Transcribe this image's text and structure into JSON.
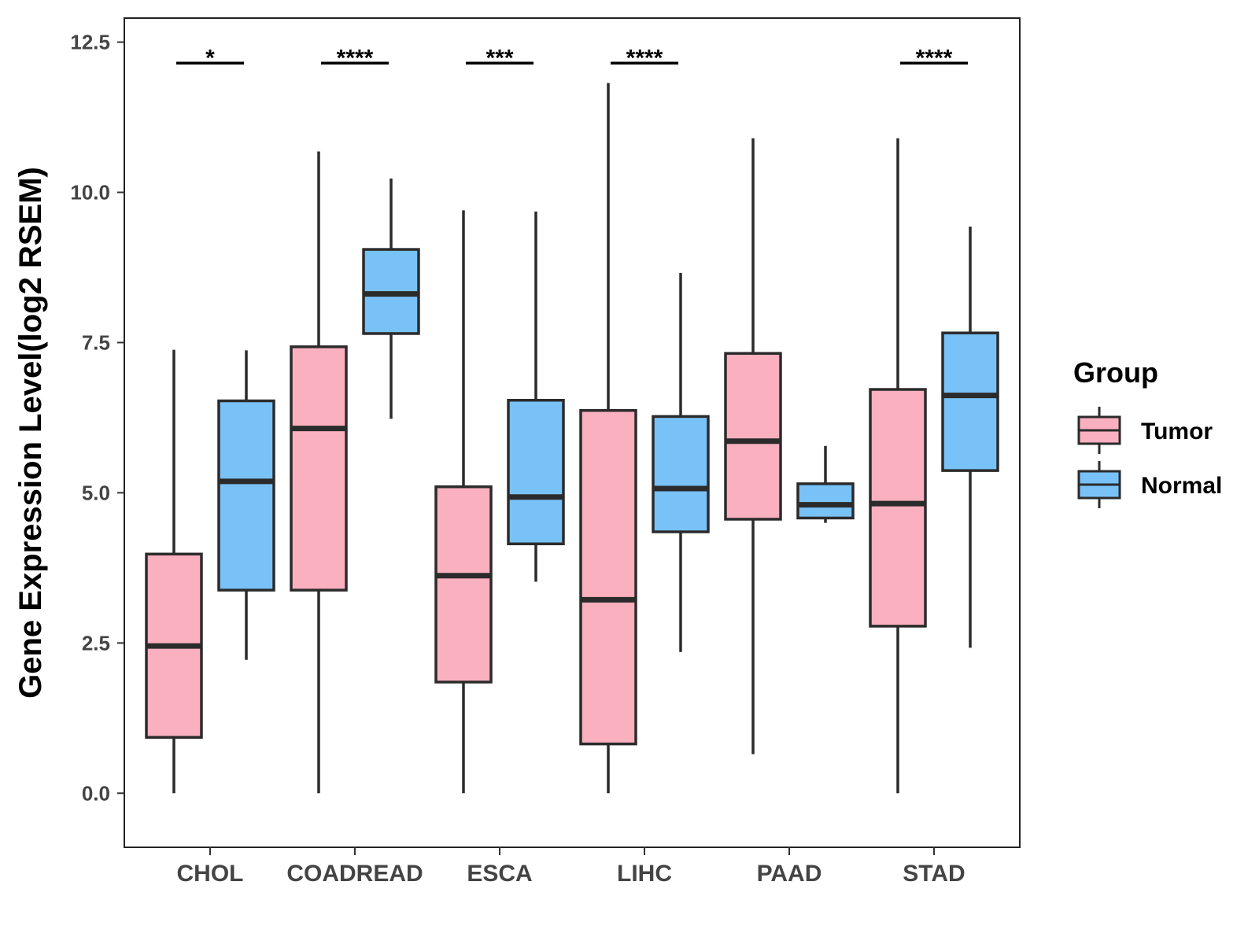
{
  "chart_data": {
    "type": "boxplot",
    "title": "",
    "xlabel": "",
    "ylabel": "Gene Expression Level(log2 RSEM)",
    "ylim": [
      -0.9,
      12.9
    ],
    "yticks": [
      0.0,
      2.5,
      5.0,
      7.5,
      10.0,
      12.5
    ],
    "ytick_labels": [
      "0.0",
      "2.5",
      "5.0",
      "7.5",
      "10.0",
      "12.5"
    ],
    "categories": [
      "CHOL",
      "COADREAD",
      "ESCA",
      "LIHC",
      "PAAD",
      "STAD"
    ],
    "grid": false,
    "legend": {
      "title": "Group",
      "position": "right",
      "entries": [
        {
          "name": "Tumor",
          "color": "#FBB0C0"
        },
        {
          "name": "Normal",
          "color": "#78C2F8"
        }
      ]
    },
    "series": [
      {
        "name": "Tumor",
        "color": "#FBB0C0",
        "boxes": [
          {
            "category": "CHOL",
            "min": 0.0,
            "q1": 0.93,
            "median": 2.45,
            "q3": 3.98,
            "max": 7.38
          },
          {
            "category": "COADREAD",
            "min": 0.0,
            "q1": 3.38,
            "median": 6.07,
            "q3": 7.43,
            "max": 10.68
          },
          {
            "category": "ESCA",
            "min": 0.0,
            "q1": 1.85,
            "median": 3.62,
            "q3": 5.1,
            "max": 9.7
          },
          {
            "category": "LIHC",
            "min": 0.0,
            "q1": 0.82,
            "median": 3.22,
            "q3": 6.37,
            "max": 11.82
          },
          {
            "category": "PAAD",
            "min": 0.65,
            "q1": 4.56,
            "median": 5.86,
            "q3": 7.32,
            "max": 10.9
          },
          {
            "category": "STAD",
            "min": 0.0,
            "q1": 2.78,
            "median": 4.82,
            "q3": 6.72,
            "max": 10.9
          }
        ]
      },
      {
        "name": "Normal",
        "color": "#78C2F8",
        "boxes": [
          {
            "category": "CHOL",
            "min": 2.22,
            "q1": 3.38,
            "median": 5.19,
            "q3": 6.53,
            "max": 7.37
          },
          {
            "category": "COADREAD",
            "min": 6.23,
            "q1": 7.65,
            "median": 8.31,
            "q3": 9.05,
            "max": 10.23
          },
          {
            "category": "ESCA",
            "min": 3.52,
            "q1": 4.15,
            "median": 4.93,
            "q3": 6.54,
            "max": 9.68
          },
          {
            "category": "LIHC",
            "min": 2.35,
            "q1": 4.35,
            "median": 5.07,
            "q3": 6.27,
            "max": 8.66
          },
          {
            "category": "PAAD",
            "min": 4.5,
            "q1": 4.58,
            "median": 4.8,
            "q3": 5.15,
            "max": 5.78
          },
          {
            "category": "STAD",
            "min": 2.42,
            "q1": 5.37,
            "median": 6.62,
            "q3": 7.66,
            "max": 9.43
          }
        ]
      }
    ],
    "significance": [
      {
        "category": "CHOL",
        "label": "*"
      },
      {
        "category": "COADREAD",
        "label": "****"
      },
      {
        "category": "ESCA",
        "label": "***"
      },
      {
        "category": "LIHC",
        "label": "****"
      },
      {
        "category": "STAD",
        "label": "****"
      }
    ],
    "significance_y": 12.15
  }
}
